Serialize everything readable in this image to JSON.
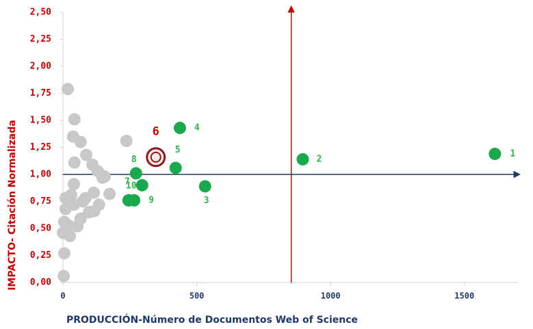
{
  "chart_data": {
    "type": "scatter",
    "xlabel": "PRODUCCIÓN-Número de Documentos Web of Science",
    "ylabel": "IMPACTO- Citación Normalizada",
    "xlim": [
      0,
      1700
    ],
    "xticks": [
      0,
      500,
      1000,
      1500
    ],
    "ylim": [
      0,
      2.5
    ],
    "yticks": [
      {
        "value": 0,
        "label": "0,00"
      },
      {
        "value": 0.25,
        "label": "0,25"
      },
      {
        "value": 0.5,
        "label": "0,50"
      },
      {
        "value": 0.75,
        "label": "0,75"
      },
      {
        "value": 1,
        "label": "1,00"
      },
      {
        "value": 1.25,
        "label": "1,25"
      },
      {
        "value": 1.5,
        "label": "1,50"
      },
      {
        "value": 1.75,
        "label": "1,75"
      },
      {
        "value": 2,
        "label": "2,00"
      },
      {
        "value": 2.25,
        "label": "2,25"
      },
      {
        "value": 2.5,
        "label": "2,50"
      }
    ],
    "reference_lines": {
      "x": 853,
      "y": 1.0,
      "x_color": "#c00000",
      "y_color": "#1f3864"
    },
    "series": [
      {
        "color": "#c8c8c8",
        "x": [
          18,
          43,
          38,
          66,
          43,
          87,
          110,
          130,
          156,
          237,
          41,
          10,
          31,
          74,
          115,
          174,
          135,
          97,
          54,
          10,
          5,
          0,
          26,
          5,
          3,
          66,
          41,
          20,
          117,
          148,
          84
        ],
        "values": [
          1.79,
          1.51,
          1.35,
          1.3,
          1.11,
          1.18,
          1.09,
          1.03,
          0.98,
          1.31,
          0.91,
          0.78,
          0.81,
          0.75,
          0.83,
          0.82,
          0.72,
          0.65,
          0.52,
          0.68,
          0.56,
          0.46,
          0.43,
          0.27,
          0.06,
          0.59,
          0.72,
          0.53,
          0.66,
          0.97,
          0.78
        ]
      },
      {
        "color": "#1aa84c",
        "label_color": "#2db34a",
        "labels": [
          "1",
          "2",
          "3",
          "4",
          "5",
          "7",
          "8",
          "9",
          "10"
        ],
        "x": [
          1614,
          896,
          531,
          437,
          421,
          296,
          273,
          266,
          245
        ],
        "values": [
          1.19,
          1.14,
          0.89,
          1.43,
          1.06,
          0.9,
          1.01,
          0.76,
          0.76
        ]
      },
      {
        "color": "#8b1a1a",
        "label_color": "#c00000",
        "labels": [
          "6"
        ],
        "x": [
          347
        ],
        "values": [
          1.16
        ]
      }
    ]
  }
}
